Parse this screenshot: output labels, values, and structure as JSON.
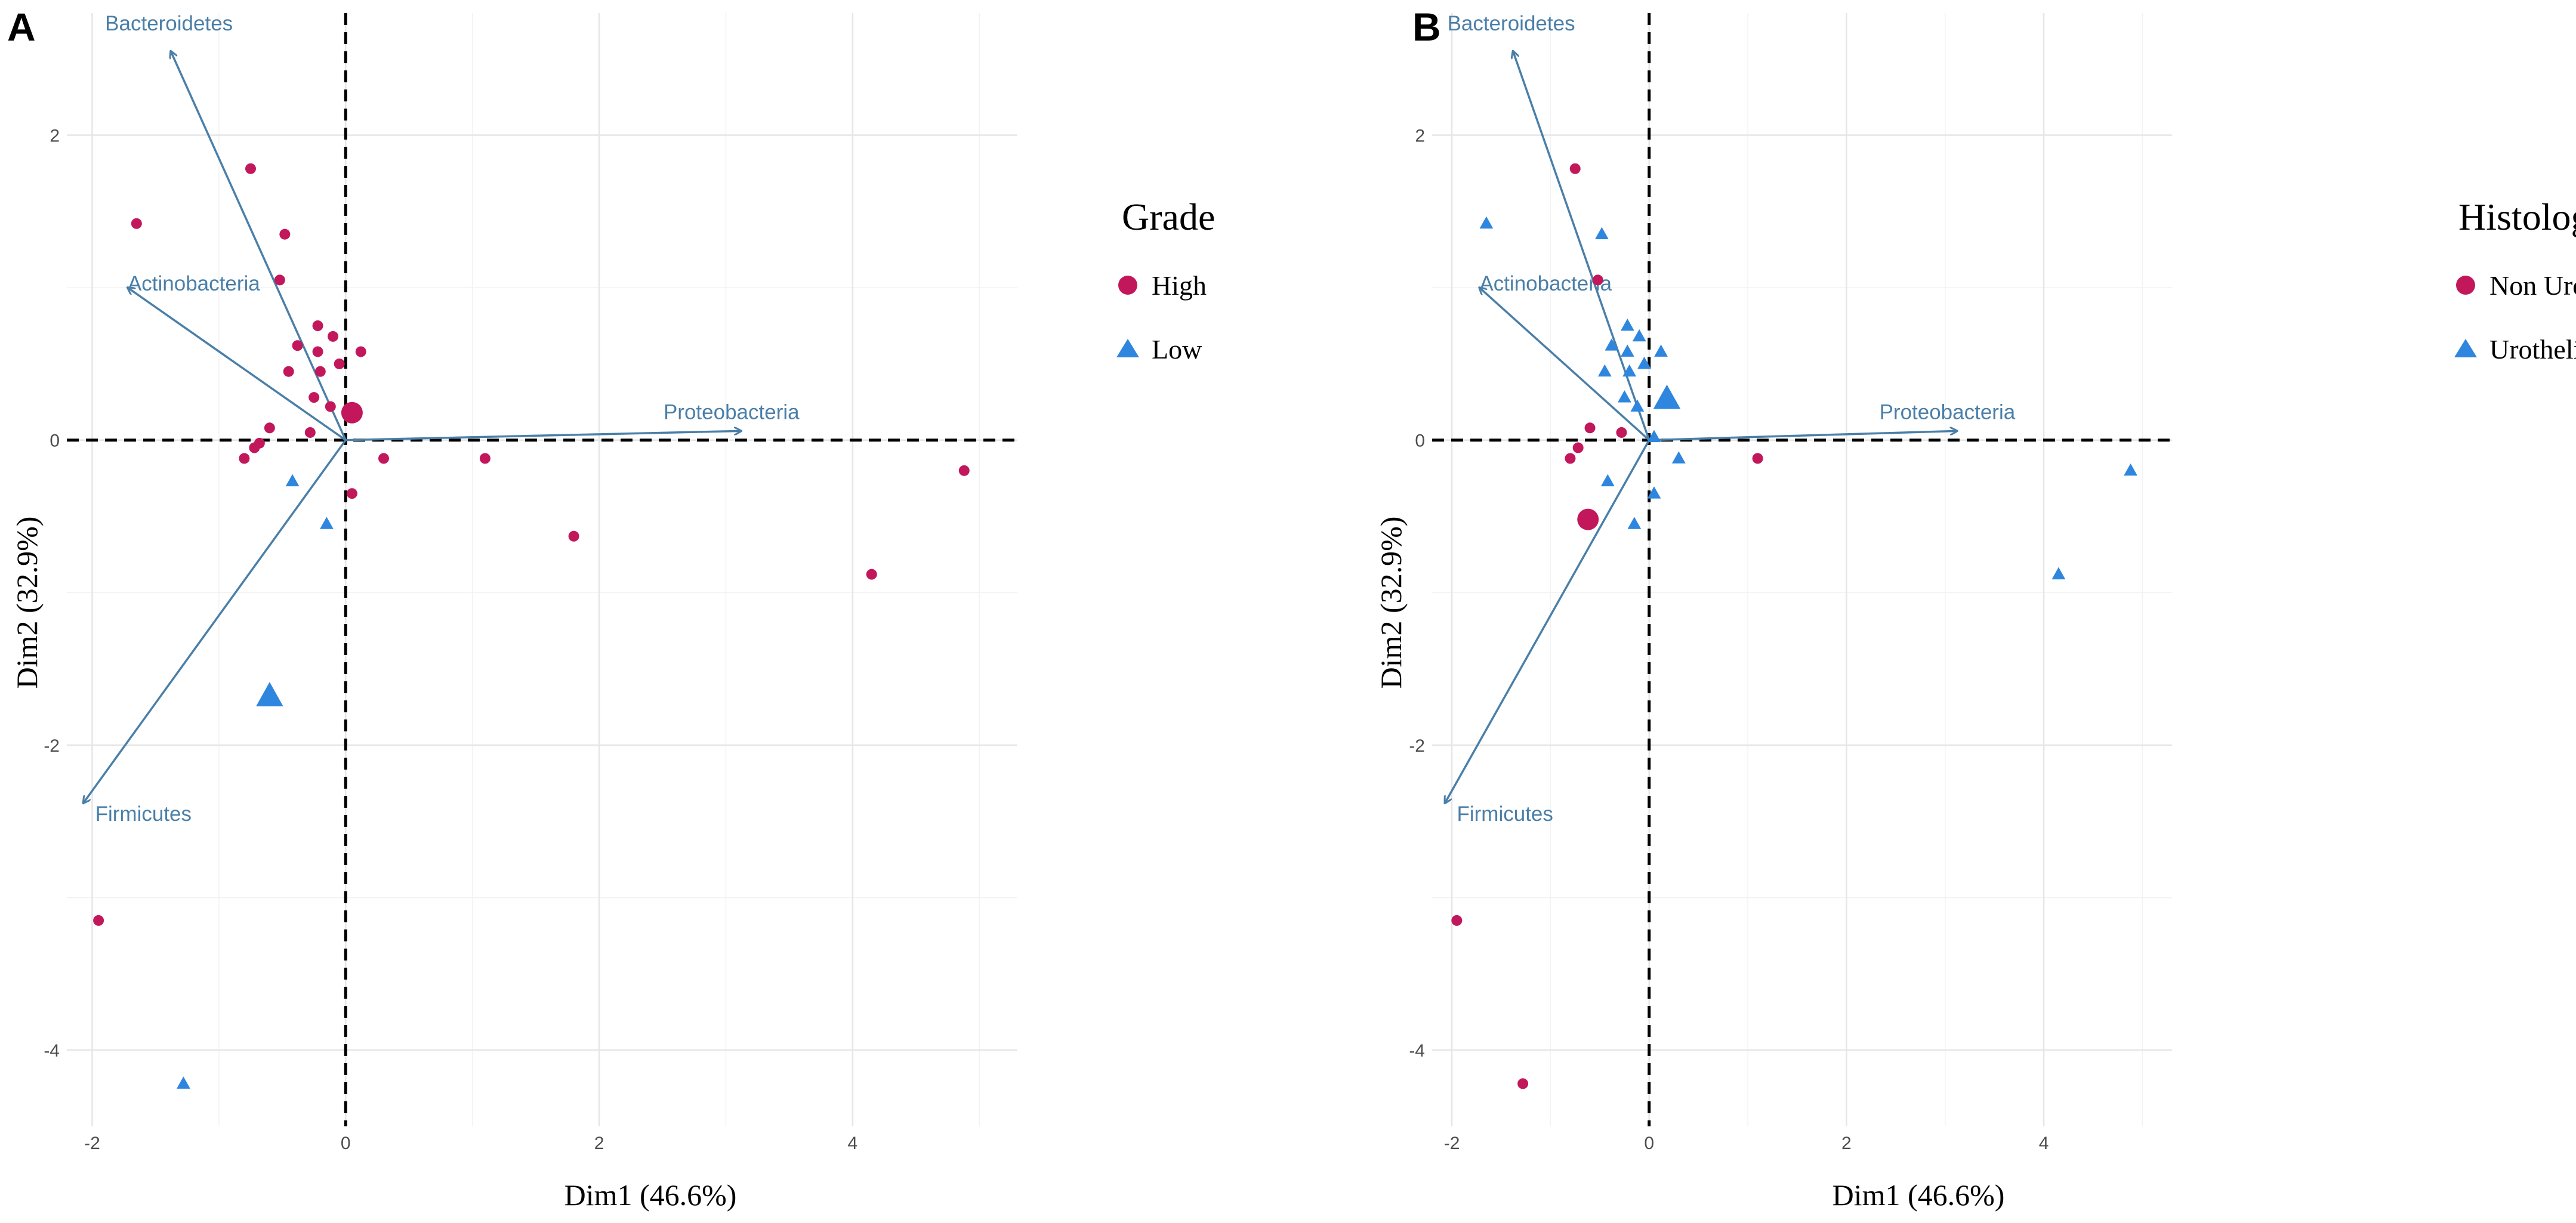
{
  "chart_data": [
    {
      "type": "scatter",
      "panel": "A",
      "title": "",
      "xlabel": "Dim1 (46.6%)",
      "ylabel": "Dim2 (32.9%)",
      "xlim": [
        -2.2,
        5.3
      ],
      "ylim": [
        -4.5,
        2.8
      ],
      "xticks": [
        -2,
        0,
        2,
        4
      ],
      "yticks": [
        -4,
        -2,
        0,
        2
      ],
      "grid": true,
      "legend": {
        "title": "Grade",
        "position": "right-top"
      },
      "colors": {
        "group1": "#c2185b",
        "group2": "#2e86de",
        "arrow": "#4a7fa8"
      },
      "arrows": [
        {
          "label": "Bacteroidetes",
          "x": -1.38,
          "y": 2.55
        },
        {
          "label": "Actinobacteria",
          "x": -1.72,
          "y": 1.0
        },
        {
          "label": "Proteobacteria",
          "x": 3.12,
          "y": 0.06
        },
        {
          "label": "Firmicutes",
          "x": -2.07,
          "y": -2.38
        }
      ],
      "series": [
        {
          "name": "High",
          "marker": "circle",
          "points": [
            {
              "x": -0.75,
              "y": 1.78
            },
            {
              "x": -1.65,
              "y": 1.42
            },
            {
              "x": -0.48,
              "y": 1.35
            },
            {
              "x": -0.52,
              "y": 1.05
            },
            {
              "x": -0.22,
              "y": 0.75
            },
            {
              "x": -0.1,
              "y": 0.68
            },
            {
              "x": -0.38,
              "y": 0.62
            },
            {
              "x": -0.22,
              "y": 0.58
            },
            {
              "x": 0.12,
              "y": 0.58
            },
            {
              "x": -0.05,
              "y": 0.5
            },
            {
              "x": -0.45,
              "y": 0.45
            },
            {
              "x": -0.2,
              "y": 0.45
            },
            {
              "x": -0.25,
              "y": 0.28
            },
            {
              "x": -0.12,
              "y": 0.22
            },
            {
              "x": -0.6,
              "y": 0.08
            },
            {
              "x": -0.28,
              "y": 0.05
            },
            {
              "x": -0.72,
              "y": -0.05
            },
            {
              "x": -0.68,
              "y": -0.02
            },
            {
              "x": -0.8,
              "y": -0.12
            },
            {
              "x": 0.3,
              "y": -0.12
            },
            {
              "x": 1.1,
              "y": -0.12
            },
            {
              "x": 0.05,
              "y": -0.35
            },
            {
              "x": 1.8,
              "y": -0.63
            },
            {
              "x": 4.88,
              "y": -0.2
            },
            {
              "x": 4.15,
              "y": -0.88
            },
            {
              "x": -1.95,
              "y": -3.15
            }
          ],
          "centroid": {
            "x": 0.05,
            "y": 0.18
          }
        },
        {
          "name": "Low",
          "marker": "triangle",
          "points": [
            {
              "x": -0.42,
              "y": -0.27
            },
            {
              "x": -0.15,
              "y": -0.55
            },
            {
              "x": -1.28,
              "y": -4.22
            }
          ],
          "centroid": {
            "x": -0.6,
            "y": -1.68
          }
        }
      ]
    },
    {
      "type": "scatter",
      "panel": "B",
      "title": "",
      "xlabel": "Dim1 (46.6%)",
      "ylabel": "Dim2 (32.9%)",
      "xlim": [
        -2.2,
        5.3
      ],
      "ylim": [
        -4.5,
        2.8
      ],
      "xticks": [
        -2,
        0,
        2,
        4
      ],
      "yticks": [
        -4,
        -2,
        0,
        2
      ],
      "grid": true,
      "legend": {
        "title": "Histology",
        "position": "right-top"
      },
      "colors": {
        "group1": "#c2185b",
        "group2": "#2e86de",
        "arrow": "#4a7fa8"
      },
      "arrows": [
        {
          "label": "Bacteroidetes",
          "x": -1.38,
          "y": 2.55
        },
        {
          "label": "Actinobacteria",
          "x": -1.72,
          "y": 1.0
        },
        {
          "label": "Proteobacteria",
          "x": 3.12,
          "y": 0.06
        },
        {
          "label": "Firmicutes",
          "x": -2.07,
          "y": -2.38
        }
      ],
      "series": [
        {
          "name": "Non Urothelial",
          "marker": "circle",
          "points": [
            {
              "x": -0.75,
              "y": 1.78
            },
            {
              "x": -0.52,
              "y": 1.05
            },
            {
              "x": -0.6,
              "y": 0.08
            },
            {
              "x": -0.28,
              "y": 0.05
            },
            {
              "x": -0.72,
              "y": -0.05
            },
            {
              "x": -0.8,
              "y": -0.12
            },
            {
              "x": 1.1,
              "y": -0.12
            },
            {
              "x": -1.95,
              "y": -3.15
            },
            {
              "x": -1.28,
              "y": -4.22
            }
          ],
          "centroid": {
            "x": -0.62,
            "y": -0.52
          }
        },
        {
          "name": "Urothelial",
          "marker": "triangle",
          "points": [
            {
              "x": -1.65,
              "y": 1.42
            },
            {
              "x": -0.48,
              "y": 1.35
            },
            {
              "x": -0.22,
              "y": 0.75
            },
            {
              "x": -0.1,
              "y": 0.68
            },
            {
              "x": -0.38,
              "y": 0.62
            },
            {
              "x": -0.22,
              "y": 0.58
            },
            {
              "x": 0.12,
              "y": 0.58
            },
            {
              "x": -0.05,
              "y": 0.5
            },
            {
              "x": -0.45,
              "y": 0.45
            },
            {
              "x": -0.2,
              "y": 0.45
            },
            {
              "x": -0.25,
              "y": 0.28
            },
            {
              "x": -0.12,
              "y": 0.22
            },
            {
              "x": 0.05,
              "y": 0.02
            },
            {
              "x": 0.3,
              "y": -0.12
            },
            {
              "x": -0.42,
              "y": -0.27
            },
            {
              "x": 0.05,
              "y": -0.35
            },
            {
              "x": -0.15,
              "y": -0.55
            },
            {
              "x": 4.15,
              "y": -0.88
            },
            {
              "x": 4.88,
              "y": -0.2
            }
          ],
          "centroid": {
            "x": 0.18,
            "y": 0.27
          }
        }
      ]
    }
  ]
}
